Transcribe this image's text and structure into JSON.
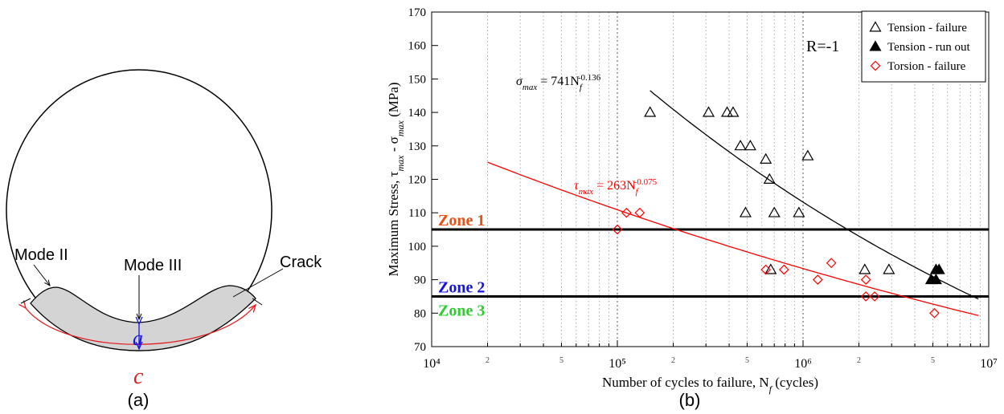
{
  "diagram": {
    "mode_ii": "Mode II",
    "mode_iii": "Mode III",
    "crack": "Crack",
    "a": "a",
    "c": "c",
    "panel": "(a)"
  },
  "chart_data": {
    "type": "scatter",
    "panel": "(b)",
    "x_label": [
      "Number of cycles to failure, N",
      "f",
      " (cycles)"
    ],
    "y_label": [
      "Maximum Stress, τ",
      "max",
      " - σ",
      "max",
      " (MPa)"
    ],
    "xscale": "log",
    "xlim": [
      10000,
      10000000
    ],
    "xticks": [
      {
        "value": 10000,
        "label": "10⁴"
      },
      {
        "value": 20000,
        "label": "2"
      },
      {
        "value": 50000,
        "label": "5"
      },
      {
        "value": 100000,
        "label": "10⁵"
      },
      {
        "value": 200000,
        "label": "2"
      },
      {
        "value": 500000,
        "label": "5"
      },
      {
        "value": 1000000,
        "label": "10⁶"
      },
      {
        "value": 2000000,
        "label": "2"
      },
      {
        "value": 5000000,
        "label": "5"
      },
      {
        "value": 10000000,
        "label": "10⁷"
      }
    ],
    "xminor": [
      30000,
      40000,
      60000,
      70000,
      80000,
      90000,
      300000,
      400000,
      600000,
      700000,
      800000,
      900000,
      3000000,
      4000000,
      6000000,
      7000000,
      8000000,
      9000000
    ],
    "ylim": [
      70,
      170
    ],
    "yticks": [
      70,
      80,
      90,
      100,
      110,
      120,
      130,
      140,
      150,
      160,
      170
    ],
    "grid": "x",
    "legend": "upper right",
    "series": [
      {
        "name": "Tension - failure",
        "marker": "triangle-open",
        "color": "#000000",
        "x": [
          150000,
          310000,
          390000,
          420000,
          460000,
          520000,
          630000,
          660000,
          490000,
          700000,
          950000,
          1060000,
          670000,
          2150000,
          2900000
        ],
        "values": [
          140,
          140,
          140,
          140,
          130,
          130,
          126,
          120,
          110,
          110,
          110,
          127,
          93,
          93,
          93
        ]
      },
      {
        "name": "Tension - run out",
        "marker": "triangle-filled",
        "color": "#000000",
        "x": [
          5200000,
          5400000,
          4900000,
          5200000
        ],
        "values": [
          93,
          93,
          90,
          90
        ]
      },
      {
        "name": "Torsion - failure",
        "marker": "diamond-open",
        "color": "#ff0000",
        "x": [
          100000,
          112000,
          132000,
          630000,
          790000,
          1200000,
          1420000,
          2180000,
          2180000,
          2430000,
          5100000
        ],
        "values": [
          105,
          110,
          110,
          93,
          93,
          90,
          95,
          90,
          85,
          85,
          80
        ]
      }
    ],
    "fits": [
      {
        "color": "#000000",
        "var": "σ",
        "var_sub": "max",
        "eq": " = ",
        "a": 741,
        "n": "N",
        "n_sub": "f",
        "b": -0.136,
        "xrange": [
          150000,
          8800000
        ]
      },
      {
        "color": "#ff0000",
        "var": "τ",
        "var_sub": "max",
        "eq": " = ",
        "a": 263,
        "n": "N",
        "n_sub": "f",
        "b": -0.075,
        "xrange": [
          20000,
          8800000
        ]
      }
    ],
    "hlines": [
      105,
      85
    ],
    "annotation": "R=-1",
    "zones": [
      {
        "label": "Zone 1",
        "color": "#ee4f14"
      },
      {
        "label": "Zone 2",
        "color": "#1515e0"
      },
      {
        "label": "Zone 3",
        "color": "#2ecc2e"
      }
    ]
  }
}
